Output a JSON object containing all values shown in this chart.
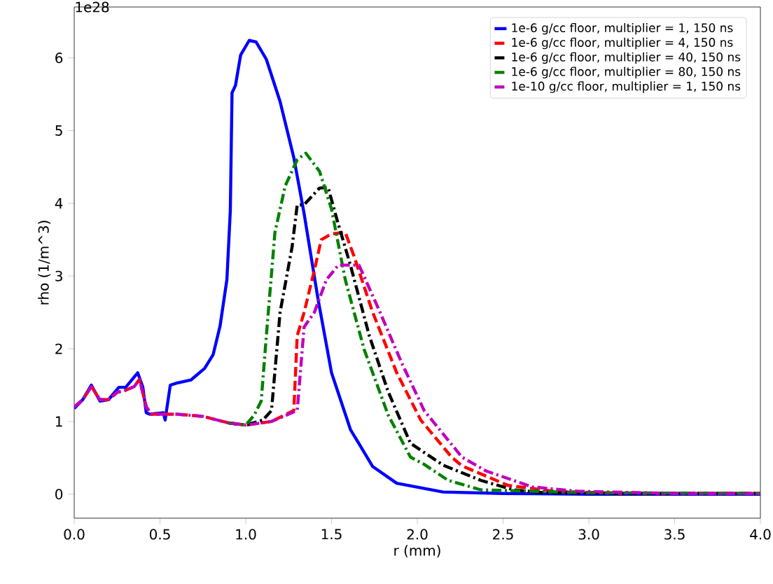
{
  "chart_data": {
    "type": "line",
    "xlabel": "r (mm)",
    "ylabel": "rho (1/m^3)",
    "annotations": [
      "1e28"
    ],
    "xlim": [
      0,
      4
    ],
    "ylim": [
      -0.33,
      6.7
    ],
    "xticks": [
      {
        "value": 0,
        "label": "0.0"
      },
      {
        "value": 0.5,
        "label": "0.5"
      },
      {
        "value": 1,
        "label": "1.0"
      },
      {
        "value": 1.5,
        "label": "1.5"
      },
      {
        "value": 2,
        "label": "2.0"
      },
      {
        "value": 2.5,
        "label": "2.5"
      },
      {
        "value": 3,
        "label": "3.0"
      },
      {
        "value": 3.5,
        "label": "3.5"
      },
      {
        "value": 4,
        "label": "4.0"
      }
    ],
    "yticks": [
      0,
      1,
      2,
      3,
      4,
      5,
      6
    ],
    "grid": false,
    "legend": "top right",
    "marker": "none",
    "series": [
      {
        "name": "1e-6 g/cc floor, multiplier = 1, 150 ns",
        "color": "#0000ff",
        "line_style": "solid",
        "x": [
          0,
          0.05,
          0.1,
          0.15,
          0.2,
          0.26,
          0.3,
          0.37,
          0.4,
          0.42,
          0.44,
          0.52,
          0.53,
          0.56,
          0.6,
          0.68,
          0.76,
          0.81,
          0.85,
          0.89,
          0.91,
          0.92,
          0.94,
          0.97,
          1.02,
          1.06,
          1.12,
          1.2,
          1.28,
          1.34,
          1.42,
          1.5,
          1.61,
          1.74,
          1.88,
          2.15,
          2.5,
          3,
          4
        ],
        "values": [
          1.18,
          1.3,
          1.5,
          1.28,
          1.3,
          1.47,
          1.47,
          1.67,
          1.47,
          1.12,
          1.1,
          1.12,
          1.02,
          1.5,
          1.53,
          1.57,
          1.73,
          1.92,
          2.31,
          2.95,
          3.9,
          5.52,
          5.62,
          6.04,
          6.24,
          6.22,
          5.98,
          5.4,
          4.63,
          3.86,
          2.7,
          1.67,
          0.89,
          0.38,
          0.15,
          0.03,
          0.01,
          0,
          0
        ]
      },
      {
        "name": "1e-6 g/cc floor, multiplier = 4, 150 ns",
        "color": "#ff0000",
        "line_style": "dashed",
        "x": [
          0,
          0.05,
          0.1,
          0.15,
          0.2,
          0.25,
          0.3,
          0.35,
          0.38,
          0.42,
          0.45,
          0.6,
          0.75,
          0.9,
          1.0,
          1.15,
          1.28,
          1.3,
          1.34,
          1.4,
          1.44,
          1.5,
          1.58,
          1.63,
          1.74,
          1.88,
          2.02,
          2.2,
          2.26,
          2.53,
          2.8,
          3.2,
          4
        ],
        "values": [
          1.2,
          1.3,
          1.48,
          1.3,
          1.3,
          1.4,
          1.43,
          1.48,
          1.58,
          1.2,
          1.1,
          1.1,
          1.07,
          0.98,
          0.95,
          1.0,
          1.15,
          2.18,
          2.5,
          3.08,
          3.5,
          3.58,
          3.6,
          3.28,
          2.5,
          1.67,
          1.02,
          0.51,
          0.39,
          0.12,
          0.04,
          0.01,
          0.01
        ]
      },
      {
        "name": "1e-6 g/cc floor, multiplier = 40, 150 ns",
        "color": "#000000",
        "line_style": "dashdot",
        "x": [
          0.9,
          1.0,
          1.1,
          1.15,
          1.2,
          1.27,
          1.3,
          1.34,
          1.43,
          1.48,
          1.53,
          1.61,
          1.72,
          1.83,
          1.96,
          2.15,
          2.37,
          2.56,
          2.74,
          3.2,
          4
        ],
        "values": [
          0.98,
          0.95,
          1.02,
          1.15,
          2.5,
          3.4,
          3.98,
          3.98,
          4.21,
          4.22,
          3.79,
          3.15,
          2.18,
          1.41,
          0.7,
          0.4,
          0.19,
          0.06,
          0.02,
          0.01,
          0.01
        ]
      },
      {
        "name": "1e-6 g/cc floor, multiplier = 80, 150 ns",
        "color": "#008000",
        "line_style": "dashdot",
        "x": [
          0.9,
          1.0,
          1.05,
          1.09,
          1.12,
          1.17,
          1.23,
          1.3,
          1.35,
          1.43,
          1.5,
          1.58,
          1.69,
          1.83,
          1.96,
          2.04,
          2.18,
          2.37,
          3,
          4
        ],
        "values": [
          0.98,
          0.95,
          1.09,
          1.28,
          2.18,
          3.6,
          4.24,
          4.6,
          4.69,
          4.44,
          3.92,
          2.95,
          1.99,
          1.09,
          0.51,
          0.41,
          0.19,
          0.06,
          0.02,
          0.01
        ]
      },
      {
        "name": "1e-10 g/cc floor, multiplier = 1, 150 ns",
        "color": "#bf00bf",
        "line_style": "dashdot",
        "x": [
          0,
          0.05,
          0.1,
          0.15,
          0.2,
          0.25,
          0.3,
          0.35,
          0.38,
          0.42,
          0.45,
          0.6,
          0.75,
          0.9,
          1.0,
          1.15,
          1.3,
          1.34,
          1.4,
          1.47,
          1.54,
          1.66,
          1.77,
          1.91,
          2.04,
          2.26,
          2.4,
          2.67,
          2.94,
          3.5,
          4
        ],
        "values": [
          1.2,
          1.3,
          1.48,
          1.3,
          1.3,
          1.4,
          1.43,
          1.48,
          1.58,
          1.2,
          1.1,
          1.1,
          1.07,
          0.98,
          0.95,
          1.0,
          1.15,
          2.3,
          2.5,
          2.95,
          3.15,
          3.15,
          2.57,
          1.8,
          1.15,
          0.51,
          0.32,
          0.1,
          0.04,
          0.01,
          0.01
        ]
      }
    ]
  }
}
